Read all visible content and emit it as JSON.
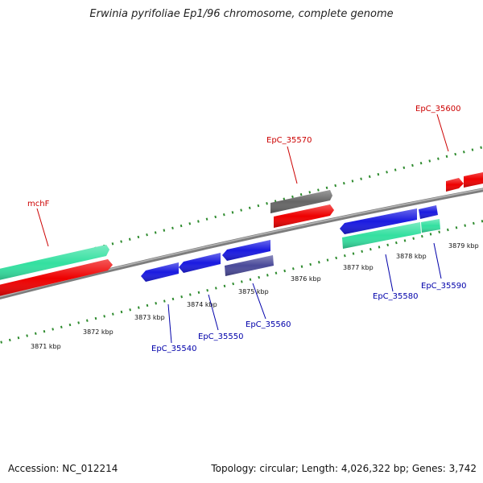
{
  "title": "Erwinia pyrifoliae Ep1/96 chromosome, complete genome",
  "footer": {
    "accession": "Accession: NC_012214",
    "summary": "Topology: circular; Length: 4,026,322 bp; Genes: 3,742"
  },
  "scale_labels": [
    "3871 kbp",
    "3872 kbp",
    "3873 kbp",
    "3874 kbp",
    "3875 kbp",
    "3876 kbp",
    "3877 kbp",
    "3878 kbp",
    "3879 kbp"
  ],
  "gene_labels": {
    "mchF": "mchF",
    "EpC_35570": "EpC_35570",
    "EpC_35600": "EpC_35600",
    "EpC_35540": "EpC_35540",
    "EpC_35550": "EpC_35550",
    "EpC_35560": "EpC_35560",
    "EpC_35580": "EpC_35580",
    "EpC_35590": "EpC_35590"
  },
  "colors": {
    "backbone": "#8a8a8a",
    "tick_green": "#2e8b2e",
    "cds_red": "#ee0000",
    "cds_mint": "#33e0a0",
    "cds_blue": "#1a1ae0",
    "cds_gray": "#666666",
    "cds_slate": "#4a4a99",
    "label_red": "#cc0000",
    "label_blue": "#0000aa"
  }
}
